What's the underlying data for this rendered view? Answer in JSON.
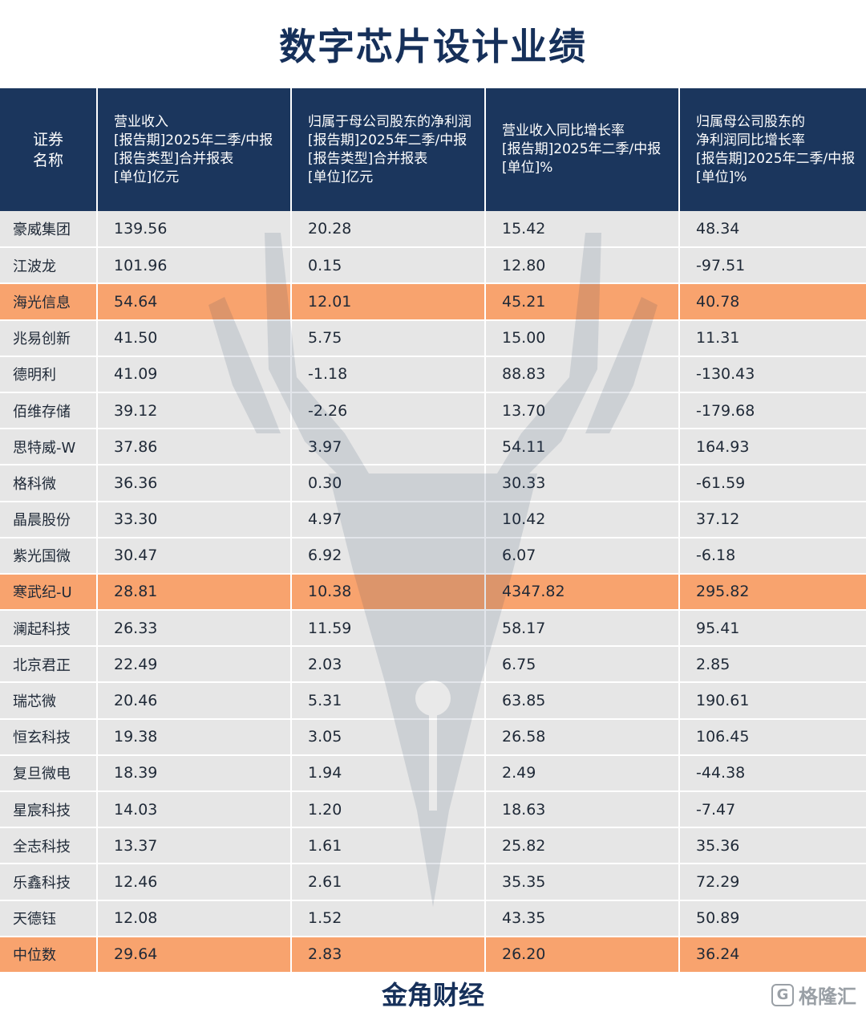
{
  "title": "数字芯片设计业绩",
  "table": {
    "headers": [
      [
        "证券",
        "名称"
      ],
      [
        "营业收入",
        "[报告期]2025年二季/中报",
        "[报告类型]合并报表",
        "[单位]亿元"
      ],
      [
        "归属于母公司股东的净利润",
        "[报告期]2025年二季/中报",
        "[报告类型]合并报表",
        "[单位]亿元"
      ],
      [
        "营业收入同比增长率",
        "[报告期]2025年二季/中报",
        "[单位]%"
      ],
      [
        "归属母公司股东的",
        "净利润同比增长率",
        "[报告期]2025年二季/中报",
        "[单位]%"
      ]
    ],
    "rows": [
      {
        "name": "豪威集团",
        "revenue": "139.56",
        "net_profit": "20.28",
        "revenue_growth": "15.42",
        "profit_growth": "48.34",
        "highlight": false
      },
      {
        "name": "江波龙",
        "revenue": "101.96",
        "net_profit": "0.15",
        "revenue_growth": "12.80",
        "profit_growth": "-97.51",
        "highlight": false
      },
      {
        "name": "海光信息",
        "revenue": "54.64",
        "net_profit": "12.01",
        "revenue_growth": "45.21",
        "profit_growth": "40.78",
        "highlight": true
      },
      {
        "name": "兆易创新",
        "revenue": "41.50",
        "net_profit": "5.75",
        "revenue_growth": "15.00",
        "profit_growth": "11.31",
        "highlight": false
      },
      {
        "name": "德明利",
        "revenue": "41.09",
        "net_profit": "-1.18",
        "revenue_growth": "88.83",
        "profit_growth": "-130.43",
        "highlight": false
      },
      {
        "name": "佰维存储",
        "revenue": "39.12",
        "net_profit": "-2.26",
        "revenue_growth": "13.70",
        "profit_growth": "-179.68",
        "highlight": false
      },
      {
        "name": "思特威-W",
        "revenue": "37.86",
        "net_profit": "3.97",
        "revenue_growth": "54.11",
        "profit_growth": "164.93",
        "highlight": false
      },
      {
        "name": "格科微",
        "revenue": "36.36",
        "net_profit": "0.30",
        "revenue_growth": "30.33",
        "profit_growth": "-61.59",
        "highlight": false
      },
      {
        "name": "晶晨股份",
        "revenue": "33.30",
        "net_profit": "4.97",
        "revenue_growth": "10.42",
        "profit_growth": "37.12",
        "highlight": false
      },
      {
        "name": "紫光国微",
        "revenue": "30.47",
        "net_profit": "6.92",
        "revenue_growth": "6.07",
        "profit_growth": "-6.18",
        "highlight": false
      },
      {
        "name": "寒武纪-U",
        "revenue": "28.81",
        "net_profit": "10.38",
        "revenue_growth": "4347.82",
        "profit_growth": "295.82",
        "highlight": true
      },
      {
        "name": "澜起科技",
        "revenue": "26.33",
        "net_profit": "11.59",
        "revenue_growth": "58.17",
        "profit_growth": "95.41",
        "highlight": false
      },
      {
        "name": "北京君正",
        "revenue": "22.49",
        "net_profit": "2.03",
        "revenue_growth": "6.75",
        "profit_growth": "2.85",
        "highlight": false
      },
      {
        "name": "瑞芯微",
        "revenue": "20.46",
        "net_profit": "5.31",
        "revenue_growth": "63.85",
        "profit_growth": "190.61",
        "highlight": false
      },
      {
        "name": "恒玄科技",
        "revenue": "19.38",
        "net_profit": "3.05",
        "revenue_growth": "26.58",
        "profit_growth": "106.45",
        "highlight": false
      },
      {
        "name": "复旦微电",
        "revenue": "18.39",
        "net_profit": "1.94",
        "revenue_growth": "2.49",
        "profit_growth": "-44.38",
        "highlight": false
      },
      {
        "name": "星宸科技",
        "revenue": "14.03",
        "net_profit": "1.20",
        "revenue_growth": "18.63",
        "profit_growth": "-7.47",
        "highlight": false
      },
      {
        "name": "全志科技",
        "revenue": "13.37",
        "net_profit": "1.61",
        "revenue_growth": "25.82",
        "profit_growth": "35.36",
        "highlight": false
      },
      {
        "name": "乐鑫科技",
        "revenue": "12.46",
        "net_profit": "2.61",
        "revenue_growth": "35.35",
        "profit_growth": "72.29",
        "highlight": false
      },
      {
        "name": "天德钰",
        "revenue": "12.08",
        "net_profit": "1.52",
        "revenue_growth": "43.35",
        "profit_growth": "50.89",
        "highlight": false
      },
      {
        "name": "中位数",
        "revenue": "29.64",
        "net_profit": "2.83",
        "revenue_growth": "26.20",
        "profit_growth": "36.24",
        "highlight": true
      }
    ]
  },
  "footer": "金角财经",
  "brand": {
    "icon": "G",
    "text": "格隆汇"
  },
  "colors": {
    "header_bg": "#1b365d",
    "row_bg": "#e6e6e6",
    "highlight_bg": "#f8a36e",
    "title": "#16305a"
  }
}
